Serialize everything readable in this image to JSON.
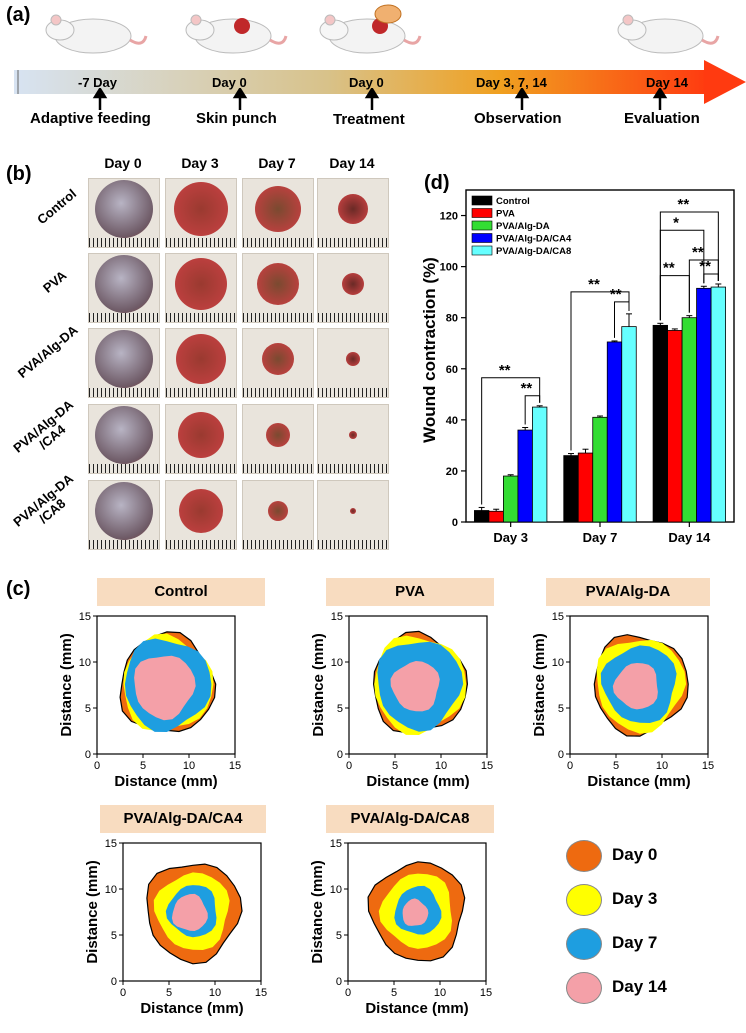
{
  "panels": {
    "a": "(a)",
    "b": "(b)",
    "c": "(c)",
    "d": "(d)"
  },
  "timeline": {
    "days": [
      "-7 Day",
      "Day 0",
      "Day 0",
      "Day 3, 7, 14",
      "Day 14"
    ],
    "stages": [
      "Adaptive feeding",
      "Skin punch",
      "Treatment",
      "Observation",
      "Evaluation"
    ]
  },
  "photo_grid": {
    "day_headers": [
      "Day 0",
      "Day 3",
      "Day 7",
      "Day 14"
    ],
    "row_labels": [
      "Control",
      "PVA",
      "PVA/Alg-DA",
      "PVA/Alg-DA\n/CA4",
      "PVA/Alg-DA\n/CA8"
    ]
  },
  "colors": {
    "Control": "#000000",
    "PVA": "#ff0000",
    "PVA/Alg-DA": "#33dd33",
    "PVA/Alg-DA/CA4": "#0000ff",
    "PVA/Alg-DA/CA8": "#66ffff",
    "day0": "#ee6a10",
    "day3": "#ffff00",
    "day7": "#1e9ee0",
    "day14": "#f4a0a8"
  },
  "wound_maps": {
    "titles": [
      "Control",
      "PVA",
      "PVA/Alg-DA",
      "PVA/Alg-DA/CA4",
      "PVA/Alg-DA/CA8"
    ],
    "xlabel": "Distance (mm)",
    "ylabel": "Distance (mm)",
    "ticks": [
      "0",
      "5",
      "10",
      "15"
    ],
    "legend": [
      "Day 0",
      "Day 3",
      "Day 7",
      "Day 14"
    ]
  },
  "chart_data": {
    "type": "bar",
    "categories": [
      "Day 3",
      "Day 7",
      "Day 14"
    ],
    "ylabel": "Wound contraction (%)",
    "xlabel": "",
    "ylim": [
      0,
      130
    ],
    "yticks": [
      0,
      20,
      40,
      60,
      80,
      100,
      120
    ],
    "legend_position": "top-left",
    "series": [
      {
        "name": "Control",
        "values": [
          4.5,
          26,
          77
        ],
        "errors": [
          1.2,
          0.8,
          0.8
        ]
      },
      {
        "name": "PVA",
        "values": [
          4.2,
          27,
          75
        ],
        "errors": [
          0.8,
          1.5,
          0.6
        ]
      },
      {
        "name": "PVA/Alg-DA",
        "values": [
          18,
          41,
          80
        ],
        "errors": [
          0.5,
          0.5,
          0.8
        ]
      },
      {
        "name": "PVA/Alg-DA/CA4",
        "values": [
          36,
          70.5,
          91.5
        ],
        "errors": [
          1.0,
          0.4,
          0.8
        ]
      },
      {
        "name": "PVA/Alg-DA/CA8",
        "values": [
          45,
          76.5,
          92
        ],
        "errors": [
          0.5,
          5,
          1.2
        ]
      }
    ],
    "significance": [
      "**",
      "**",
      "**",
      "**",
      "**",
      "*",
      "**",
      "**",
      "**"
    ]
  }
}
